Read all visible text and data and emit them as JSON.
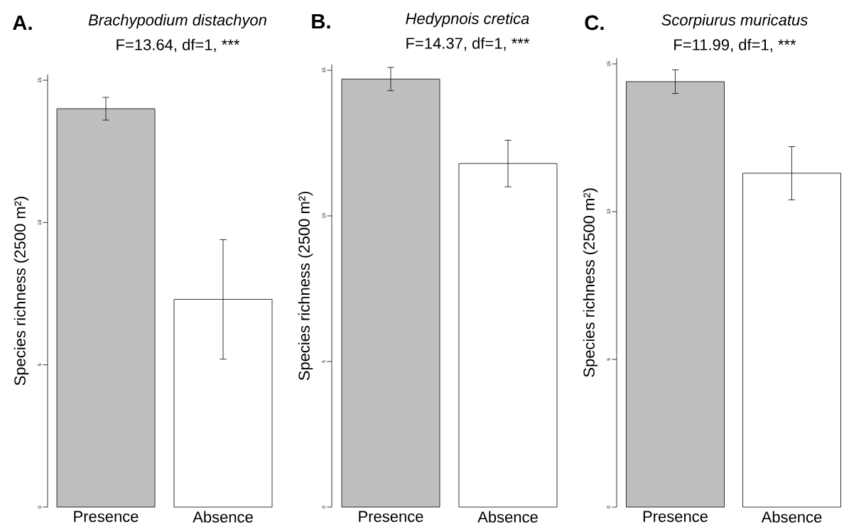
{
  "chart_data": [
    {
      "type": "bar",
      "title": "Brachypodium distachyon",
      "subtitle": "F=13.64, df=1, ***",
      "annotations": [
        "A."
      ],
      "ylabel": "Species richness (2500 m²)",
      "categories": [
        "Presence",
        "Absence"
      ],
      "values": [
        14.0,
        7.3
      ],
      "errors": [
        0.4,
        2.1
      ],
      "colors": [
        "#bebebe",
        "#ffffff"
      ],
      "ylim": [
        0,
        15.2
      ],
      "yticks": [
        0,
        5,
        10,
        15
      ]
    },
    {
      "type": "bar",
      "title": "Hedypnois cretica",
      "subtitle": "F=14.37, df=1, ***",
      "annotations": [
        "B."
      ],
      "ylabel": "Species richness (2500 m²)",
      "categories": [
        "Presence",
        "Absence"
      ],
      "values": [
        14.7,
        11.8
      ],
      "errors": [
        0.4,
        0.8
      ],
      "colors": [
        "#bebebe",
        "#ffffff"
      ],
      "ylim": [
        0,
        15.2
      ],
      "yticks": [
        0,
        5,
        10,
        15
      ]
    },
    {
      "type": "bar",
      "title": "Scorpiurus muricatus",
      "subtitle": "F=11.99, df=1, ***",
      "annotations": [
        "C."
      ],
      "ylabel": "Species richness (2500 m²)",
      "categories": [
        "Presence",
        "Absence"
      ],
      "values": [
        14.4,
        11.3
      ],
      "errors": [
        0.4,
        0.9
      ],
      "colors": [
        "#bebebe",
        "#ffffff"
      ],
      "ylim": [
        0,
        15.2
      ],
      "yticks": [
        0,
        5,
        10,
        15
      ]
    }
  ]
}
